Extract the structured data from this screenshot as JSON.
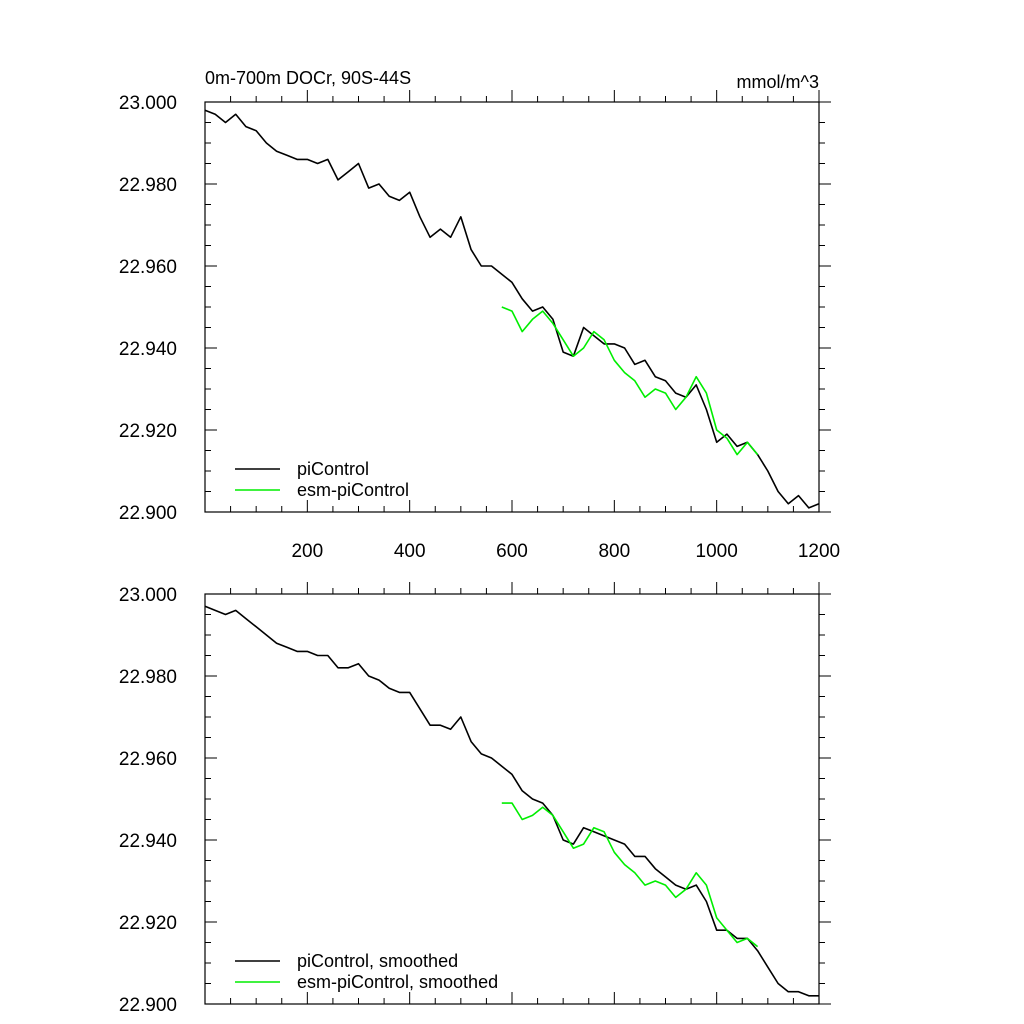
{
  "chart_data": [
    {
      "type": "line",
      "title_left": "0m-700m DOCr, 90S-44S",
      "title_right": "mmol/m^3",
      "xlim": [
        0,
        1200
      ],
      "ylim": [
        22.9,
        23.0
      ],
      "xticks": [
        200,
        400,
        600,
        800,
        1000,
        1200
      ],
      "xtick_labels": [
        "200",
        "400",
        "600",
        "800",
        "1000",
        "1200"
      ],
      "yticks": [
        22.9,
        22.92,
        22.94,
        22.96,
        22.98,
        23.0
      ],
      "ytick_labels": [
        "22.900",
        "22.920",
        "22.940",
        "22.960",
        "22.980",
        "23.000"
      ],
      "legend_position": "bottom-left",
      "grid": false,
      "series": [
        {
          "name": "piControl",
          "color": "#000000",
          "x": [
            0,
            20,
            40,
            60,
            80,
            100,
            120,
            140,
            160,
            180,
            200,
            220,
            240,
            260,
            280,
            300,
            320,
            340,
            360,
            380,
            400,
            420,
            440,
            460,
            480,
            500,
            520,
            540,
            560,
            580,
            600,
            620,
            640,
            660,
            680,
            700,
            720,
            740,
            760,
            780,
            800,
            820,
            840,
            860,
            880,
            900,
            920,
            940,
            960,
            980,
            1000,
            1020,
            1040,
            1060,
            1080,
            1100,
            1120,
            1140,
            1160,
            1180,
            1200
          ],
          "y": [
            22.998,
            22.997,
            22.995,
            22.997,
            22.994,
            22.993,
            22.99,
            22.988,
            22.987,
            22.986,
            22.986,
            22.985,
            22.986,
            22.981,
            22.983,
            22.985,
            22.979,
            22.98,
            22.977,
            22.976,
            22.978,
            22.972,
            22.967,
            22.969,
            22.967,
            22.972,
            22.964,
            22.96,
            22.96,
            22.958,
            22.956,
            22.952,
            22.949,
            22.95,
            22.947,
            22.939,
            22.938,
            22.945,
            22.943,
            22.941,
            22.941,
            22.94,
            22.936,
            22.937,
            22.933,
            22.932,
            22.929,
            22.928,
            22.931,
            22.925,
            22.917,
            22.919,
            22.916,
            22.917,
            22.914,
            22.91,
            22.905,
            22.902,
            22.904,
            22.901,
            22.902
          ]
        },
        {
          "name": "esm-piControl",
          "color": "#00ee00",
          "x": [
            580,
            600,
            620,
            640,
            660,
            680,
            700,
            720,
            740,
            760,
            780,
            800,
            820,
            840,
            860,
            880,
            900,
            920,
            940,
            960,
            980,
            1000,
            1020,
            1040,
            1060,
            1080
          ],
          "y": [
            22.95,
            22.949,
            22.944,
            22.947,
            22.949,
            22.946,
            22.942,
            22.938,
            22.94,
            22.944,
            22.942,
            22.937,
            22.934,
            22.932,
            22.928,
            22.93,
            22.929,
            22.925,
            22.928,
            22.933,
            22.929,
            22.92,
            22.918,
            22.914,
            22.917,
            22.914
          ]
        }
      ]
    },
    {
      "type": "line",
      "xlim": [
        0,
        1200
      ],
      "ylim": [
        22.9,
        23.0
      ],
      "xticks": [
        200,
        400,
        600,
        800,
        1000,
        1200
      ],
      "yticks": [
        22.9,
        22.92,
        22.94,
        22.96,
        22.98,
        23.0
      ],
      "ytick_labels": [
        "22.900",
        "22.920",
        "22.940",
        "22.960",
        "22.980",
        "23.000"
      ],
      "legend_position": "bottom-left",
      "grid": false,
      "series": [
        {
          "name": "piControl, smoothed",
          "color": "#000000",
          "x": [
            0,
            20,
            40,
            60,
            80,
            100,
            120,
            140,
            160,
            180,
            200,
            220,
            240,
            260,
            280,
            300,
            320,
            340,
            360,
            380,
            400,
            420,
            440,
            460,
            480,
            500,
            520,
            540,
            560,
            580,
            600,
            620,
            640,
            660,
            680,
            700,
            720,
            740,
            760,
            780,
            800,
            820,
            840,
            860,
            880,
            900,
            920,
            940,
            960,
            980,
            1000,
            1020,
            1040,
            1060,
            1080,
            1100,
            1120,
            1140,
            1160,
            1180,
            1200
          ],
          "y": [
            22.997,
            22.996,
            22.995,
            22.996,
            22.994,
            22.992,
            22.99,
            22.988,
            22.987,
            22.986,
            22.986,
            22.985,
            22.985,
            22.982,
            22.982,
            22.983,
            22.98,
            22.979,
            22.977,
            22.976,
            22.976,
            22.972,
            22.968,
            22.968,
            22.967,
            22.97,
            22.964,
            22.961,
            22.96,
            22.958,
            22.956,
            22.952,
            22.95,
            22.949,
            22.946,
            22.94,
            22.939,
            22.943,
            22.942,
            22.941,
            22.94,
            22.939,
            22.936,
            22.936,
            22.933,
            22.931,
            22.929,
            22.928,
            22.929,
            22.925,
            22.918,
            22.918,
            22.916,
            22.916,
            22.913,
            22.909,
            22.905,
            22.903,
            22.903,
            22.902,
            22.902
          ]
        },
        {
          "name": "esm-piControl, smoothed",
          "color": "#00ee00",
          "x": [
            580,
            600,
            620,
            640,
            660,
            680,
            700,
            720,
            740,
            760,
            780,
            800,
            820,
            840,
            860,
            880,
            900,
            920,
            940,
            960,
            980,
            1000,
            1020,
            1040,
            1060,
            1080
          ],
          "y": [
            22.949,
            22.949,
            22.945,
            22.946,
            22.948,
            22.946,
            22.942,
            22.938,
            22.939,
            22.943,
            22.942,
            22.937,
            22.934,
            22.932,
            22.929,
            22.93,
            22.929,
            22.926,
            22.928,
            22.932,
            22.929,
            22.921,
            22.918,
            22.915,
            22.916,
            22.914
          ]
        }
      ]
    }
  ]
}
